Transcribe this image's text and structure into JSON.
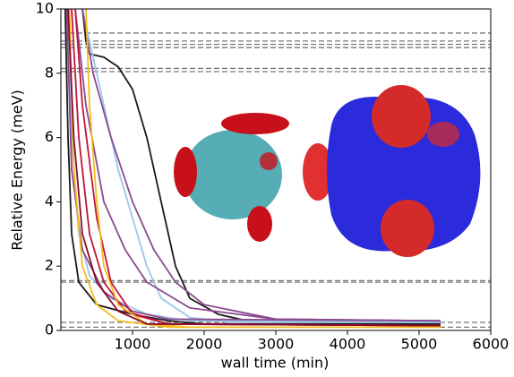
{
  "chart_data": {
    "type": "line",
    "xlabel": "wall time (min)",
    "ylabel": "Relative Energy (meV)",
    "xlim": [
      0,
      6000
    ],
    "xticks": [
      1000,
      2000,
      3000,
      4000,
      5000,
      6000
    ],
    "ylim": [
      0,
      10
    ],
    "yticks": [
      0,
      2,
      4,
      6,
      8,
      10
    ],
    "reference_lines": [
      9.25,
      9.0,
      8.9,
      8.8,
      8.15,
      8.05,
      1.55,
      1.5,
      0.25,
      0.1
    ],
    "reference_color": "#777777",
    "series": [
      {
        "color": "#1a1a1a",
        "x": [
          300,
          350,
          400,
          600,
          800,
          1000,
          1200,
          1400,
          1600,
          1800,
          2200,
          2600,
          3000,
          5300
        ],
        "values": [
          10,
          9,
          8.6,
          8.5,
          8.2,
          7.5,
          6,
          4,
          2,
          1.0,
          0.5,
          0.3,
          0.25,
          0.25
        ]
      },
      {
        "color": "#1a1a1a",
        "x": [
          60,
          100,
          150,
          250,
          500,
          1000,
          1500,
          2000,
          5300
        ],
        "values": [
          10,
          6,
          3,
          1.5,
          0.8,
          0.5,
          0.3,
          0.2,
          0.2
        ]
      },
      {
        "color": "#9ec5ea",
        "x": [
          300,
          400,
          600,
          800,
          1000,
          1200,
          1400,
          1800,
          2400,
          5300
        ],
        "values": [
          10,
          9,
          7,
          5,
          3.5,
          2,
          1,
          0.4,
          0.25,
          0.25
        ]
      },
      {
        "color": "#9ec5ea",
        "x": [
          100,
          150,
          250,
          400,
          700,
          1200,
          1800,
          5300
        ],
        "values": [
          10,
          6,
          3,
          1.7,
          1,
          0.5,
          0.3,
          0.25
        ]
      },
      {
        "color": "#8a4a8e",
        "x": [
          300,
          450,
          700,
          1000,
          1300,
          1600,
          2000,
          3000,
          5300
        ],
        "values": [
          10,
          8,
          6,
          4,
          2.5,
          1.5,
          0.8,
          0.35,
          0.3
        ]
      },
      {
        "color": "#8a4a8e",
        "x": [
          200,
          350,
          600,
          900,
          1200,
          1800,
          3000,
          5300
        ],
        "values": [
          10,
          7,
          4,
          2.5,
          1.5,
          0.7,
          0.35,
          0.3
        ]
      },
      {
        "color": "#8a4a8e",
        "x": [
          80,
          150,
          300,
          600,
          1000,
          1500,
          5300
        ],
        "values": [
          10,
          5,
          2.5,
          1.2,
          0.6,
          0.35,
          0.3
        ]
      },
      {
        "color": "#c0143c",
        "x": [
          150,
          250,
          400,
          600,
          900,
          1500,
          5300
        ],
        "values": [
          10,
          6,
          3,
          1.5,
          0.6,
          0.2,
          0.15
        ]
      },
      {
        "color": "#c0143c",
        "x": [
          200,
          300,
          500,
          700,
          1000,
          1500,
          5300
        ],
        "values": [
          10,
          7,
          3.5,
          1.5,
          0.5,
          0.2,
          0.15
        ]
      },
      {
        "color": "#f2bd1d",
        "x": [
          350,
          400,
          500,
          600,
          800,
          1200,
          1800,
          5300
        ],
        "values": [
          10,
          7,
          4,
          2,
          0.8,
          0.2,
          0.1,
          0.1
        ]
      },
      {
        "color": "#f2bd1d",
        "x": [
          120,
          180,
          300,
          500,
          800,
          1500,
          5300
        ],
        "values": [
          10,
          5,
          2,
          0.8,
          0.3,
          0.1,
          0.1
        ]
      },
      {
        "color": "#8b0a2a",
        "x": [
          100,
          180,
          300,
          500,
          800,
          1200,
          5300
        ],
        "values": [
          10,
          6,
          3,
          1.5,
          0.6,
          0.2,
          0.15
        ]
      }
    ]
  }
}
